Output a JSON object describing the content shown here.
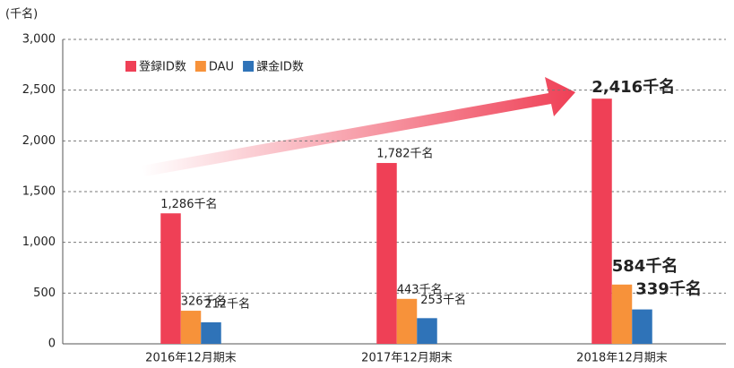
{
  "chart_data": {
    "type": "bar",
    "y_axis_label": "(千名)",
    "categories": [
      "2016年12月期末",
      "2017年12月期末",
      "2018年12月期末"
    ],
    "series": [
      {
        "name": "登録ID数",
        "color": "#ef4056",
        "values": [
          1286,
          1782,
          2416
        ],
        "value_labels": [
          "1,286千名",
          "1,782千名",
          "2,416千名"
        ]
      },
      {
        "name": "DAU",
        "color": "#f7923a",
        "values": [
          326,
          443,
          584
        ],
        "value_labels": [
          "326千名",
          "443千名",
          "584千名"
        ]
      },
      {
        "name": "課金ID数",
        "color": "#2f73b8",
        "values": [
          212,
          253,
          339
        ],
        "value_labels": [
          "212千名",
          "253千名",
          "339千名"
        ]
      }
    ],
    "ylim": [
      0,
      3000
    ],
    "yticks": [
      0,
      500,
      {
        "value": 1000,
        "label": "1,000"
      },
      {
        "value": 1500,
        "label": "1,500"
      },
      {
        "value": 2000,
        "label": "2,000"
      },
      {
        "value": 2500,
        "label": "2,500"
      },
      {
        "value": 3000,
        "label": "3,000"
      }
    ],
    "grid": true,
    "legend": "top-left"
  }
}
